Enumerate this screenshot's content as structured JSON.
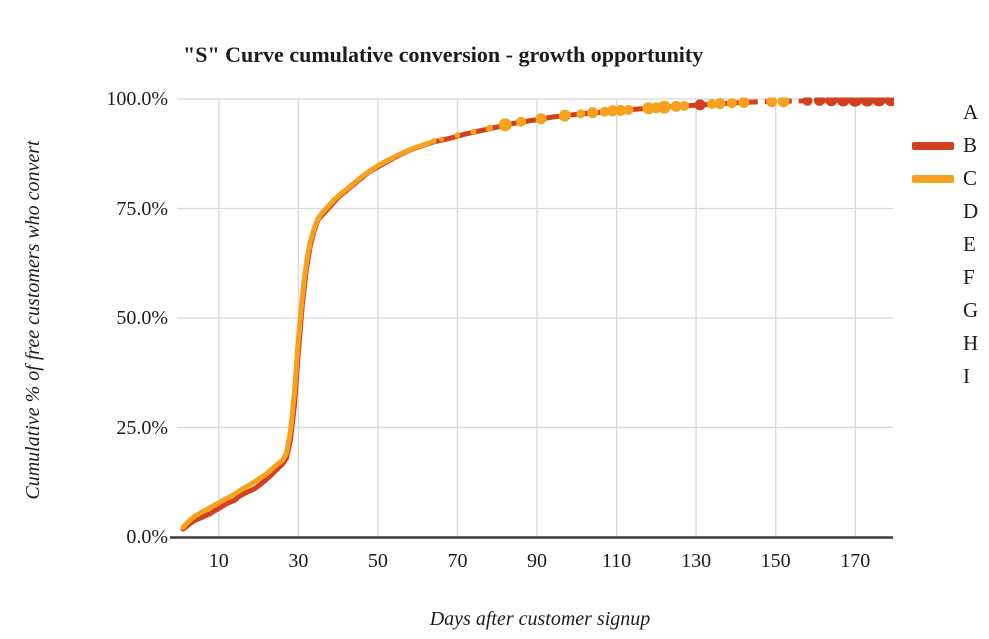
{
  "chart_data": {
    "type": "line",
    "title": "\"S\" Curve cumulative conversion - growth opportunity",
    "xlabel": "Days after customer signup",
    "ylabel": "Cumulative % of free customers who convert",
    "xlim": [
      0,
      180
    ],
    "ylim": [
      0,
      100
    ],
    "grid": true,
    "x_ticks": [
      10,
      30,
      50,
      70,
      90,
      110,
      130,
      150,
      170
    ],
    "y_ticks": [
      {
        "value": 0,
        "label": "0.0%"
      },
      {
        "value": 25,
        "label": "25.0%"
      },
      {
        "value": 50,
        "label": "50.0%"
      },
      {
        "value": 75,
        "label": "75.0%"
      },
      {
        "value": 100,
        "label": "100.0%"
      }
    ],
    "colors": {
      "series_b_red": "#d2401e",
      "series_c_orange": "#f6a21f",
      "grid": "#d8d8d8",
      "axis": "#3d3d3d",
      "text": "#1c1c1c"
    },
    "legend": {
      "position": "right",
      "items": [
        {
          "label": "A",
          "color": null
        },
        {
          "label": "B",
          "color": "#d2401e"
        },
        {
          "label": "C",
          "color": "#f6a21f"
        },
        {
          "label": "D",
          "color": null
        },
        {
          "label": "E",
          "color": null
        },
        {
          "label": "F",
          "color": null
        },
        {
          "label": "G",
          "color": null
        },
        {
          "label": "H",
          "color": null
        },
        {
          "label": "I",
          "color": null
        }
      ]
    },
    "series": [
      {
        "name": "B",
        "color": "#d2401e",
        "style": "solid-line-then-dashed-tail-with-dot-markers",
        "points": [
          [
            1,
            1.8
          ],
          [
            2,
            2.5
          ],
          [
            3,
            3.2
          ],
          [
            4,
            3.8
          ],
          [
            5,
            4.2
          ],
          [
            6,
            4.6
          ],
          [
            7,
            5.0
          ],
          [
            8,
            5.4
          ],
          [
            9,
            6.0
          ],
          [
            10,
            6.5
          ],
          [
            11,
            7.1
          ],
          [
            12,
            7.6
          ],
          [
            13,
            8.0
          ],
          [
            14,
            8.4
          ],
          [
            15,
            9.2
          ],
          [
            16,
            9.7
          ],
          [
            17,
            10.2
          ],
          [
            18,
            10.6
          ],
          [
            19,
            11.0
          ],
          [
            20,
            11.7
          ],
          [
            21,
            12.4
          ],
          [
            22,
            13.2
          ],
          [
            23,
            14.0
          ],
          [
            24,
            14.9
          ],
          [
            25,
            15.8
          ],
          [
            26,
            16.6
          ],
          [
            27,
            18.0
          ],
          [
            28,
            22.0
          ],
          [
            29,
            30.0
          ],
          [
            30,
            42.0
          ],
          [
            31,
            53.0
          ],
          [
            32,
            61.0
          ],
          [
            33,
            66.5
          ],
          [
            34,
            70.0
          ],
          [
            35,
            72.5
          ],
          [
            36,
            73.5
          ],
          [
            37,
            74.5
          ],
          [
            38,
            75.5
          ],
          [
            39,
            76.5
          ],
          [
            40,
            77.5
          ],
          [
            41,
            78.3
          ],
          [
            42,
            79.0
          ],
          [
            43,
            79.8
          ],
          [
            44,
            80.5
          ],
          [
            45,
            81.3
          ],
          [
            46,
            82.0
          ],
          [
            47,
            82.8
          ],
          [
            48,
            83.5
          ],
          [
            49,
            84.0
          ],
          [
            50,
            84.5
          ],
          [
            51,
            85.0
          ],
          [
            52,
            85.5
          ],
          [
            53,
            86.0
          ],
          [
            54,
            86.5
          ],
          [
            55,
            87.0
          ],
          [
            56,
            87.5
          ],
          [
            58,
            88.3
          ],
          [
            60,
            89.0
          ],
          [
            62,
            89.6
          ],
          [
            64,
            90.2
          ],
          [
            66,
            90.6
          ],
          [
            68,
            91.0
          ],
          [
            70,
            91.5
          ],
          [
            72,
            92.0
          ],
          [
            74,
            92.4
          ],
          [
            76,
            92.8
          ],
          [
            78,
            93.2
          ],
          [
            80,
            93.6
          ],
          [
            82,
            94.0
          ],
          [
            84,
            94.4
          ],
          [
            86,
            94.7
          ],
          [
            88,
            95.0
          ],
          [
            90,
            95.3
          ],
          [
            92,
            95.6
          ],
          [
            94,
            95.9
          ],
          [
            96,
            96.1
          ],
          [
            98,
            96.3
          ],
          [
            100,
            96.5
          ],
          [
            102,
            96.7
          ],
          [
            105,
            96.9
          ],
          [
            108,
            97.15
          ],
          [
            110,
            97.3
          ],
          [
            112,
            97.45
          ],
          [
            115,
            97.7
          ],
          [
            118,
            97.85
          ],
          [
            120,
            98.0
          ],
          [
            122,
            98.1
          ],
          [
            125,
            98.3
          ],
          [
            128,
            98.45
          ],
          [
            130,
            98.6
          ],
          [
            132,
            98.7
          ],
          [
            135,
            98.9
          ],
          [
            138,
            99.0
          ],
          [
            140,
            99.1
          ],
          [
            143,
            99.25
          ]
        ],
        "dashed_tail": [
          [
            143,
            99.25
          ],
          [
            146,
            99.35
          ],
          [
            150,
            99.45
          ],
          [
            154,
            99.52
          ],
          [
            158,
            99.6
          ],
          [
            162,
            99.68
          ],
          [
            166,
            99.75
          ],
          [
            170,
            99.8
          ],
          [
            174,
            99.87
          ],
          [
            179,
            99.95
          ]
        ],
        "markers": [
          [
            131,
            98.65,
            5.5
          ],
          [
            158,
            99.6,
            5
          ],
          [
            161,
            99.67,
            5.5
          ],
          [
            164,
            99.72,
            6
          ],
          [
            167,
            99.78,
            6.5
          ],
          [
            170,
            99.82,
            7
          ],
          [
            173,
            99.87,
            7
          ],
          [
            176,
            99.9,
            7
          ],
          [
            179,
            99.93,
            7
          ]
        ]
      },
      {
        "name": "C",
        "color": "#f6a21f",
        "style": "solid-line-then-dot-markers",
        "points": [
          [
            1,
            2.2
          ],
          [
            2,
            3.2
          ],
          [
            3,
            4.0
          ],
          [
            4,
            4.8
          ],
          [
            5,
            5.3
          ],
          [
            6,
            5.8
          ],
          [
            7,
            6.3
          ],
          [
            8,
            6.8
          ],
          [
            9,
            7.3
          ],
          [
            10,
            7.8
          ],
          [
            11,
            8.3
          ],
          [
            12,
            8.8
          ],
          [
            13,
            9.3
          ],
          [
            14,
            9.8
          ],
          [
            15,
            10.4
          ],
          [
            16,
            11.0
          ],
          [
            17,
            11.5
          ],
          [
            18,
            12.0
          ],
          [
            19,
            12.6
          ],
          [
            20,
            13.2
          ],
          [
            21,
            13.8
          ],
          [
            22,
            14.4
          ],
          [
            23,
            15.2
          ],
          [
            24,
            16.0
          ],
          [
            25,
            16.8
          ],
          [
            26,
            17.5
          ],
          [
            27,
            19.0
          ],
          [
            28,
            24.0
          ],
          [
            29,
            33.0
          ],
          [
            30,
            45.0
          ],
          [
            31,
            55.0
          ],
          [
            32,
            62.5
          ],
          [
            33,
            67.5
          ],
          [
            34,
            70.5
          ],
          [
            35,
            72.8
          ],
          [
            36,
            74.0
          ],
          [
            37,
            75.0
          ],
          [
            38,
            76.0
          ],
          [
            39,
            77.0
          ],
          [
            40,
            77.8
          ],
          [
            41,
            78.6
          ],
          [
            42,
            79.3
          ],
          [
            43,
            80.0
          ],
          [
            44,
            80.8
          ],
          [
            45,
            81.5
          ],
          [
            46,
            82.3
          ],
          [
            47,
            83.0
          ],
          [
            48,
            83.6
          ],
          [
            49,
            84.2
          ],
          [
            50,
            84.8
          ],
          [
            51,
            85.3
          ],
          [
            52,
            85.8
          ],
          [
            53,
            86.2
          ],
          [
            54,
            86.7
          ],
          [
            55,
            87.2
          ],
          [
            56,
            87.6
          ],
          [
            58,
            88.4
          ],
          [
            60,
            89.1
          ],
          [
            62,
            89.7
          ],
          [
            63,
            90.0
          ]
        ],
        "dashed_tail": [],
        "markers": [
          [
            64,
            90.4,
            3
          ],
          [
            66,
            90.8,
            2.5
          ],
          [
            70,
            91.7,
            3
          ],
          [
            74,
            92.5,
            3
          ],
          [
            78,
            93.3,
            3.5
          ],
          [
            82,
            94.1,
            6.5
          ],
          [
            86,
            94.8,
            5
          ],
          [
            91,
            95.5,
            5.5
          ],
          [
            97,
            96.2,
            6
          ],
          [
            101,
            96.6,
            4.5
          ],
          [
            104,
            96.9,
            5.5
          ],
          [
            107,
            97.1,
            5
          ],
          [
            109,
            97.3,
            5.5
          ],
          [
            111,
            97.4,
            5.5
          ],
          [
            113,
            97.5,
            5
          ],
          [
            118,
            97.9,
            6
          ],
          [
            120,
            98.0,
            5.5
          ],
          [
            122,
            98.15,
            6.5
          ],
          [
            125,
            98.3,
            5.5
          ],
          [
            127,
            98.4,
            5
          ],
          [
            134,
            98.85,
            5
          ],
          [
            136,
            98.95,
            5.5
          ],
          [
            139,
            99.05,
            5
          ],
          [
            142,
            99.2,
            5.5
          ],
          [
            149,
            99.4,
            5.5
          ],
          [
            152,
            99.5,
            6
          ]
        ]
      }
    ]
  }
}
